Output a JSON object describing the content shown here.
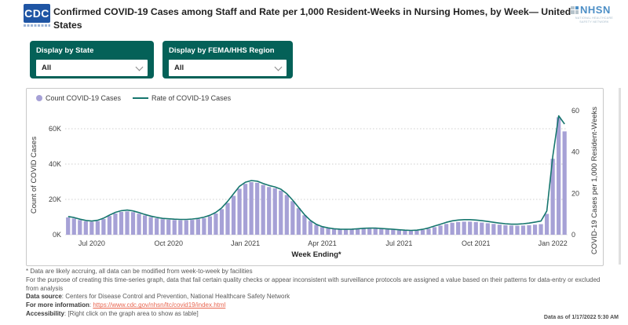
{
  "header": {
    "cdc_logo_text": "CDC",
    "title": "Confirmed COVID-19 Cases among Staff and Rate per 1,000 Resident-Weeks in Nursing Homes, by Week— United States",
    "nhsn_logo": {
      "name": "NHSN",
      "subtitle_line1": "NATIONAL HEALTHCARE",
      "subtitle_line2": "SAFETY NETWORK"
    }
  },
  "filters": [
    {
      "label": "Display by State",
      "value": "All"
    },
    {
      "label": "Display by FEMA/HHS Region",
      "value": "All"
    }
  ],
  "chart_data": {
    "type": "bar+line",
    "legend": [
      {
        "label": "Count COVID-19 Cases",
        "kind": "bar",
        "color": "#a6a1d6"
      },
      {
        "label": "Rate of COVID-19 Cases",
        "kind": "line",
        "color": "#16766e"
      }
    ],
    "xlabel": "Week Ending*",
    "x_tick_labels": [
      "Jul 2020",
      "Oct 2020",
      "Jan 2021",
      "Apr 2021",
      "Jul 2021",
      "Oct 2021",
      "Jan 2022"
    ],
    "x_tick_indices": [
      4,
      17,
      30,
      43,
      56,
      69,
      82
    ],
    "left_axis": {
      "label": "Count of COVID Cases",
      "tick_labels": [
        "0K",
        "20K",
        "40K",
        "60K"
      ],
      "tick_values": [
        0,
        20,
        40,
        60
      ],
      "max": 73
    },
    "right_axis": {
      "label": "COVID-19 Cases per 1,000 Resident-Weeks",
      "tick_labels": [
        "0",
        "20",
        "40",
        "60"
      ],
      "tick_values": [
        0,
        20,
        40,
        60
      ],
      "max": 62
    },
    "grid": "dotted horizontal",
    "legend_position": "top-left",
    "series": [
      {
        "name": "Count COVID-19 Cases",
        "unit": "thousands",
        "values": [
          9.8,
          9.2,
          8.3,
          7.6,
          7.3,
          7.7,
          8.9,
          10.6,
          12.0,
          12.9,
          13.2,
          12.8,
          11.9,
          10.9,
          10.0,
          9.3,
          8.8,
          8.5,
          8.3,
          8.2,
          8.2,
          8.4,
          8.8,
          9.4,
          10.4,
          12.0,
          14.5,
          18.0,
          22.0,
          26.0,
          28.8,
          29.8,
          29.4,
          28.2,
          27.0,
          26.3,
          25.0,
          22.5,
          19.0,
          15.0,
          11.0,
          7.8,
          5.6,
          4.3,
          3.6,
          3.1,
          2.9,
          2.8,
          2.9,
          3.1,
          3.3,
          3.4,
          3.4,
          3.2,
          3.0,
          2.8,
          2.5,
          2.3,
          2.2,
          2.3,
          2.7,
          3.4,
          4.3,
          5.2,
          6.1,
          6.8,
          7.2,
          7.4,
          7.4,
          7.2,
          6.9,
          6.5,
          6.1,
          5.7,
          5.4,
          5.2,
          5.1,
          5.2,
          5.4,
          5.7,
          6.0,
          11.8,
          43.0,
          66.5,
          58.5
        ]
      },
      {
        "name": "Rate of COVID-19 Cases",
        "unit": "per 1,000 resident-weeks",
        "values": [
          8.8,
          8.3,
          7.5,
          6.9,
          6.6,
          7.0,
          8.0,
          9.5,
          10.8,
          11.6,
          11.9,
          11.5,
          10.7,
          9.8,
          9.0,
          8.4,
          7.9,
          7.7,
          7.5,
          7.4,
          7.4,
          7.6,
          7.9,
          8.5,
          9.4,
          10.8,
          13.0,
          16.2,
          19.8,
          23.4,
          25.4,
          26.2,
          25.9,
          24.8,
          23.8,
          23.1,
          22.0,
          19.8,
          16.7,
          13.2,
          9.7,
          6.9,
          5.0,
          3.9,
          3.3,
          2.9,
          2.7,
          2.6,
          2.7,
          2.9,
          3.1,
          3.2,
          3.2,
          3.0,
          2.8,
          2.6,
          2.4,
          2.2,
          2.1,
          2.2,
          2.6,
          3.3,
          4.2,
          5.1,
          6.0,
          6.7,
          7.1,
          7.3,
          7.3,
          7.1,
          6.8,
          6.4,
          6.0,
          5.6,
          5.3,
          5.1,
          5.1,
          5.3,
          5.6,
          6.1,
          6.6,
          11.5,
          38.0,
          57.5,
          53.5
        ]
      }
    ]
  },
  "footnotes": {
    "line1": "* Data are likely accruing, all data can be modified from week-to-week by facilities",
    "line2": "For the purpose of creating this time-series graph, data that fail certain quality checks or appear inconsistent with surveillance protocols are assigned a value based on their patterns for data-entry or excluded from analysis",
    "source_label": "Data source",
    "source_text": ": Centers for Disease Control and Prevention, National Healthcare Safety Network",
    "info_label": "For more information",
    "info_separator": ": ",
    "info_link": "https://www.cdc.gov/nhsn/ltc/covid19/index.html",
    "accessibility_label": "Accessibility",
    "accessibility_text": ": [Right click on the graph area to show as table]"
  },
  "data_as_of": "Data as of 1/17/2022 5:30 AM"
}
